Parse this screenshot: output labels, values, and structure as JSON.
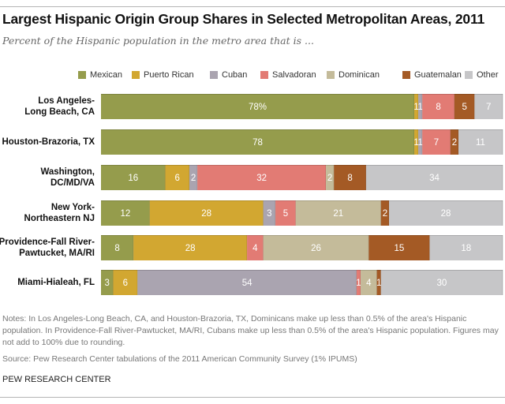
{
  "title": "Largest Hispanic Origin Group Shares in Selected Metropolitan Areas, 2011",
  "subtitle": "Percent of the Hispanic population in the metro area that is ...",
  "notes": "Notes: In Los Angeles-Long Beach, CA, and Houston-Brazoria, TX, Dominicans make up less than 0.5% of the area's Hispanic population. In Providence-Fall River-Pawtucket, MA/RI, Cubans make up less than 0.5% of the area's Hispanic population. Figures may not add to 100% due to rounding.",
  "source": "Source: Pew Research Center tabulations of the 2011 American Community Survey (1% IPUMS)",
  "organization": "PEW RESEARCH CENTER",
  "colors": {
    "Mexican": "#959c4c",
    "Puerto Rican": "#d2a731",
    "Cuban": "#aaa4b0",
    "Salvadoran": "#e27b74",
    "Dominican": "#c4bb9a",
    "Guatemalan": "#a45a25",
    "Other": "#c6c6c8"
  },
  "chart_data": {
    "type": "bar",
    "orientation": "horizontal",
    "stacked": true,
    "title": "Largest Hispanic Origin Group Shares in Selected Metropolitan Areas, 2011",
    "subtitle": "Percent of the Hispanic population in the metro area that is ...",
    "xlabel": "",
    "ylabel": "",
    "xlim": [
      0,
      100
    ],
    "legend_position": "top",
    "categories": [
      "Los Angeles-\nLong Beach, CA",
      "Houston-Brazoria, TX",
      "Washington,\nDC/MD/VA",
      "New York-\nNortheastern NJ",
      "Providence-Fall River-\nPawtucket, MA/RI",
      "Miami-Hialeah, FL"
    ],
    "series": [
      {
        "name": "Mexican",
        "values": [
          78,
          78,
          16,
          12,
          8,
          3
        ]
      },
      {
        "name": "Puerto Rican",
        "values": [
          1,
          1,
          6,
          28,
          28,
          6
        ]
      },
      {
        "name": "Cuban",
        "values": [
          1,
          1,
          2,
          3,
          0,
          54
        ]
      },
      {
        "name": "Salvadoran",
        "values": [
          8,
          7,
          32,
          5,
          4,
          1
        ]
      },
      {
        "name": "Dominican",
        "values": [
          0,
          0,
          2,
          21,
          26,
          4
        ]
      },
      {
        "name": "Guatemalan",
        "values": [
          5,
          2,
          8,
          2,
          15,
          1
        ]
      },
      {
        "name": "Other",
        "values": [
          7,
          11,
          34,
          28,
          18,
          30
        ]
      }
    ],
    "data_labels": [
      [
        "78%",
        "1",
        "1",
        "8",
        "",
        "5",
        "7"
      ],
      [
        "78",
        "1",
        "1",
        "7",
        "",
        "2",
        "11"
      ],
      [
        "16",
        "6",
        "2",
        "32",
        "2",
        "8",
        "34"
      ],
      [
        "12",
        "28",
        "3",
        "5",
        "21",
        "2",
        "28"
      ],
      [
        "8",
        "28",
        "",
        "4",
        "26",
        "15",
        "18"
      ],
      [
        "3",
        "6",
        "54",
        "1",
        "4",
        "1",
        "30"
      ]
    ]
  }
}
